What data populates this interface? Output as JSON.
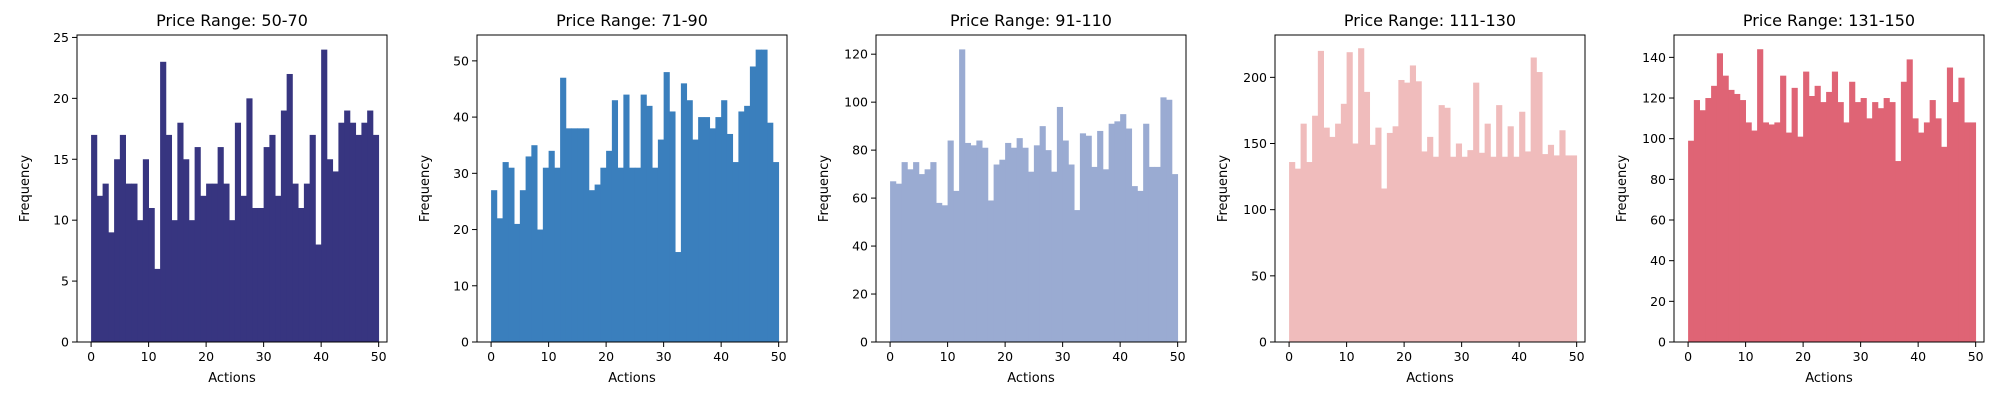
{
  "chart_data": [
    {
      "type": "bar",
      "title": "Price Range: 50-70",
      "xlabel": "Actions",
      "ylabel": "Frequency",
      "color": "#373580",
      "xlim": [
        -2.45,
        51.45
      ],
      "ylim": [
        0,
        25.2
      ],
      "xticks": [
        0,
        10,
        20,
        30,
        40,
        50
      ],
      "yticks": [
        0,
        5,
        10,
        15,
        20,
        25
      ],
      "x": [
        0,
        1,
        2,
        3,
        4,
        5,
        6,
        7,
        8,
        9,
        10,
        11,
        12,
        13,
        14,
        15,
        16,
        17,
        18,
        19,
        20,
        21,
        22,
        23,
        24,
        25,
        26,
        27,
        28,
        29,
        30,
        31,
        32,
        33,
        34,
        35,
        36,
        37,
        38,
        39,
        40,
        41,
        42,
        43,
        44,
        45,
        46,
        47,
        48,
        49
      ],
      "values": [
        17,
        12,
        13,
        9,
        15,
        17,
        13,
        13,
        10,
        15,
        11,
        6,
        23,
        17,
        10,
        18,
        15,
        10,
        16,
        12,
        13,
        13,
        16,
        13,
        10,
        18,
        12,
        20,
        11,
        11,
        16,
        17,
        12,
        19,
        22,
        13,
        11,
        13,
        17,
        8,
        24,
        15,
        14,
        18,
        19,
        18,
        17,
        18,
        19,
        17
      ]
    },
    {
      "type": "bar",
      "title": "Price Range: 71-90",
      "xlabel": "Actions",
      "ylabel": "Frequency",
      "color": "#3a7fbd",
      "xlim": [
        -2.45,
        51.45
      ],
      "ylim": [
        0,
        54.6
      ],
      "xticks": [
        0,
        10,
        20,
        30,
        40,
        50
      ],
      "yticks": [
        0,
        10,
        20,
        30,
        40,
        50
      ],
      "x": [
        0,
        1,
        2,
        3,
        4,
        5,
        6,
        7,
        8,
        9,
        10,
        11,
        12,
        13,
        14,
        15,
        16,
        17,
        18,
        19,
        20,
        21,
        22,
        23,
        24,
        25,
        26,
        27,
        28,
        29,
        30,
        31,
        32,
        33,
        34,
        35,
        36,
        37,
        38,
        39,
        40,
        41,
        42,
        43,
        44,
        45,
        46,
        47,
        48,
        49
      ],
      "values": [
        27,
        22,
        32,
        31,
        21,
        27,
        33,
        35,
        20,
        31,
        34,
        31,
        47,
        38,
        38,
        38,
        38,
        27,
        28,
        31,
        34,
        43,
        31,
        44,
        31,
        31,
        44,
        42,
        31,
        36,
        48,
        41,
        16,
        46,
        43,
        36,
        40,
        40,
        38,
        40,
        43,
        37,
        32,
        41,
        42,
        49,
        52,
        52,
        39,
        32
      ]
    },
    {
      "type": "bar",
      "title": "Price Range: 91-110",
      "xlabel": "Actions",
      "ylabel": "Frequency",
      "color": "#9aabd2",
      "xlim": [
        -2.45,
        51.45
      ],
      "ylim": [
        0,
        128
      ],
      "xticks": [
        0,
        10,
        20,
        30,
        40,
        50
      ],
      "yticks": [
        0,
        20,
        40,
        60,
        80,
        100,
        120
      ],
      "x": [
        0,
        1,
        2,
        3,
        4,
        5,
        6,
        7,
        8,
        9,
        10,
        11,
        12,
        13,
        14,
        15,
        16,
        17,
        18,
        19,
        20,
        21,
        22,
        23,
        24,
        25,
        26,
        27,
        28,
        29,
        30,
        31,
        32,
        33,
        34,
        35,
        36,
        37,
        38,
        39,
        40,
        41,
        42,
        43,
        44,
        45,
        46,
        47,
        48,
        49
      ],
      "values": [
        67,
        66,
        75,
        72,
        75,
        70,
        72,
        75,
        58,
        57,
        84,
        63,
        122,
        83,
        82,
        84,
        81,
        59,
        74,
        76,
        83,
        81,
        85,
        81,
        71,
        82,
        90,
        80,
        71,
        98,
        84,
        74,
        55,
        87,
        86,
        73,
        88,
        72,
        91,
        92,
        95,
        89,
        65,
        63,
        91,
        73,
        73,
        102,
        101,
        70
      ]
    },
    {
      "type": "bar",
      "title": "Price Range: 111-130",
      "xlabel": "Actions",
      "ylabel": "Frequency",
      "color": "#f0bcbc",
      "xlim": [
        -2.45,
        51.45
      ],
      "ylim": [
        0,
        232
      ],
      "xticks": [
        0,
        10,
        20,
        30,
        40,
        50
      ],
      "yticks": [
        0,
        50,
        100,
        150,
        200
      ],
      "x": [
        0,
        1,
        2,
        3,
        4,
        5,
        6,
        7,
        8,
        9,
        10,
        11,
        12,
        13,
        14,
        15,
        16,
        17,
        18,
        19,
        20,
        21,
        22,
        23,
        24,
        25,
        26,
        27,
        28,
        29,
        30,
        31,
        32,
        33,
        34,
        35,
        36,
        37,
        38,
        39,
        40,
        41,
        42,
        43,
        44,
        45,
        46,
        47,
        48,
        49
      ],
      "values": [
        136,
        131,
        165,
        136,
        171,
        220,
        162,
        155,
        165,
        180,
        219,
        150,
        222,
        189,
        149,
        162,
        116,
        158,
        163,
        198,
        196,
        209,
        197,
        144,
        155,
        140,
        179,
        177,
        140,
        150,
        140,
        145,
        196,
        143,
        165,
        140,
        179,
        140,
        163,
        140,
        174,
        144,
        215,
        204,
        142,
        149,
        141,
        160,
        141,
        141
      ]
    },
    {
      "type": "bar",
      "title": "Price Range: 131-150",
      "xlabel": "Actions",
      "ylabel": "Frequency",
      "color": "#df6475",
      "xlim": [
        -2.45,
        51.45
      ],
      "ylim": [
        0,
        151
      ],
      "xticks": [
        0,
        10,
        20,
        30,
        40,
        50
      ],
      "yticks": [
        0,
        20,
        40,
        60,
        80,
        100,
        120,
        140
      ],
      "x": [
        0,
        1,
        2,
        3,
        4,
        5,
        6,
        7,
        8,
        9,
        10,
        11,
        12,
        13,
        14,
        15,
        16,
        17,
        18,
        19,
        20,
        21,
        22,
        23,
        24,
        25,
        26,
        27,
        28,
        29,
        30,
        31,
        32,
        33,
        34,
        35,
        36,
        37,
        38,
        39,
        40,
        41,
        42,
        43,
        44,
        45,
        46,
        47,
        48,
        49
      ],
      "values": [
        99,
        119,
        114,
        120,
        126,
        142,
        131,
        124,
        122,
        119,
        108,
        104,
        144,
        108,
        107,
        108,
        131,
        103,
        125,
        101,
        133,
        121,
        126,
        118,
        123,
        133,
        118,
        108,
        128,
        118,
        120,
        110,
        118,
        115,
        120,
        118,
        89,
        128,
        139,
        110,
        103,
        108,
        119,
        110,
        96,
        135,
        118,
        130,
        108,
        108
      ]
    }
  ]
}
